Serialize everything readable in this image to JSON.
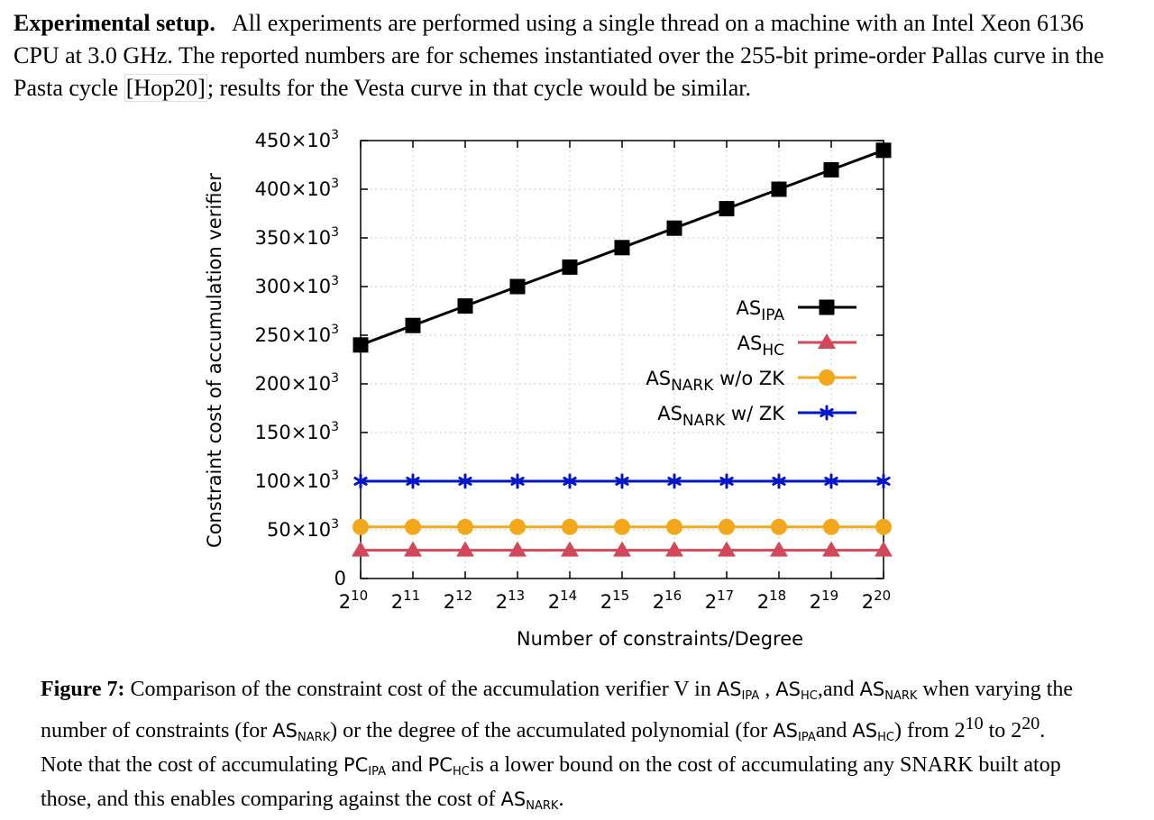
{
  "intro": {
    "heading": "Experimental setup.",
    "text_before_cite": "All experiments are performed using a single thread on a machine with an Intel Xeon 6136 CPU at 3.0 GHz. The reported numbers are for schemes instantiated over the 255-bit prime-order Pallas curve in the Pasta cycle ",
    "cite": "[Hop20]",
    "text_after_cite": "; results for the Vesta curve in that cycle would be similar."
  },
  "chart_data": {
    "type": "line",
    "xlabel": "Number of constraints/Degree",
    "ylabel": "Constraint cost of accumulation verifier",
    "x": [
      10,
      11,
      12,
      13,
      14,
      15,
      16,
      17,
      18,
      19,
      20
    ],
    "x_tick_labels": [
      {
        "base": "2",
        "exp": "10"
      },
      {
        "base": "2",
        "exp": "11"
      },
      {
        "base": "2",
        "exp": "12"
      },
      {
        "base": "2",
        "exp": "13"
      },
      {
        "base": "2",
        "exp": "14"
      },
      {
        "base": "2",
        "exp": "15"
      },
      {
        "base": "2",
        "exp": "16"
      },
      {
        "base": "2",
        "exp": "17"
      },
      {
        "base": "2",
        "exp": "18"
      },
      {
        "base": "2",
        "exp": "19"
      },
      {
        "base": "2",
        "exp": "20"
      }
    ],
    "y_ticks": [
      0,
      50000,
      100000,
      150000,
      200000,
      250000,
      300000,
      350000,
      400000,
      450000
    ],
    "y_tick_labels": [
      "0",
      "50×10",
      "100×10",
      "150×10",
      "200×10",
      "250×10",
      "300×10",
      "350×10",
      "400×10",
      "450×10"
    ],
    "y_tick_exp": "3",
    "ylim": [
      0,
      450000
    ],
    "xlim": [
      10,
      20
    ],
    "x_scale": "log2",
    "grid": true,
    "legend_position": "right",
    "series": [
      {
        "name": "IPA",
        "legend_main": "AS",
        "legend_sub": "IPA",
        "legend_suffix": "",
        "color": "#000000",
        "marker": "square",
        "values": [
          240000,
          260000,
          280000,
          300000,
          320000,
          340000,
          360000,
          380000,
          400000,
          420000,
          440000
        ]
      },
      {
        "name": "HC",
        "legend_main": "AS",
        "legend_sub": "HC",
        "legend_suffix": "",
        "color": "#d1485b",
        "marker": "triangle",
        "values": [
          29000,
          29000,
          29000,
          29000,
          29000,
          29000,
          29000,
          29000,
          29000,
          29000,
          29000
        ]
      },
      {
        "name": "NARK w/o ZK",
        "legend_main": "AS",
        "legend_sub": "NARK",
        "legend_suffix": " w/o ZK",
        "color": "#f3a81a",
        "marker": "circle",
        "values": [
          53000,
          53000,
          53000,
          53000,
          53000,
          53000,
          53000,
          53000,
          53000,
          53000,
          53000
        ]
      },
      {
        "name": "NARK w/ ZK",
        "legend_main": "AS",
        "legend_sub": "NARK",
        "legend_suffix": " w/ ZK",
        "color": "#0016c8",
        "marker": "star",
        "values": [
          100000,
          100000,
          100000,
          100000,
          100000,
          100000,
          100000,
          100000,
          100000,
          100000,
          100000
        ]
      }
    ]
  },
  "caption": {
    "label": "Figure 7:",
    "t1": "Comparison of the constraint cost of the accumulation verifier V in ",
    "as": "AS",
    "pc": "PC",
    "ipa": "IPA",
    "hc": "HC",
    "nark": "NARK",
    "t2": " , ",
    "t3": ",and ",
    "t4": " when varying the number of constraints (for ",
    "t5": ") or the degree of the accumulated polynomial (for ",
    "t6": "and ",
    "t7": ") from 2",
    "exp10": "10",
    "t8": " to 2",
    "exp20": "20",
    "t9": ". Note that the cost of accumulating ",
    "t10": " and ",
    "t11": "is a lower bound on the cost of accumulating any SNARK built atop those, and this enables comparing against the cost of ",
    "t12": "."
  }
}
